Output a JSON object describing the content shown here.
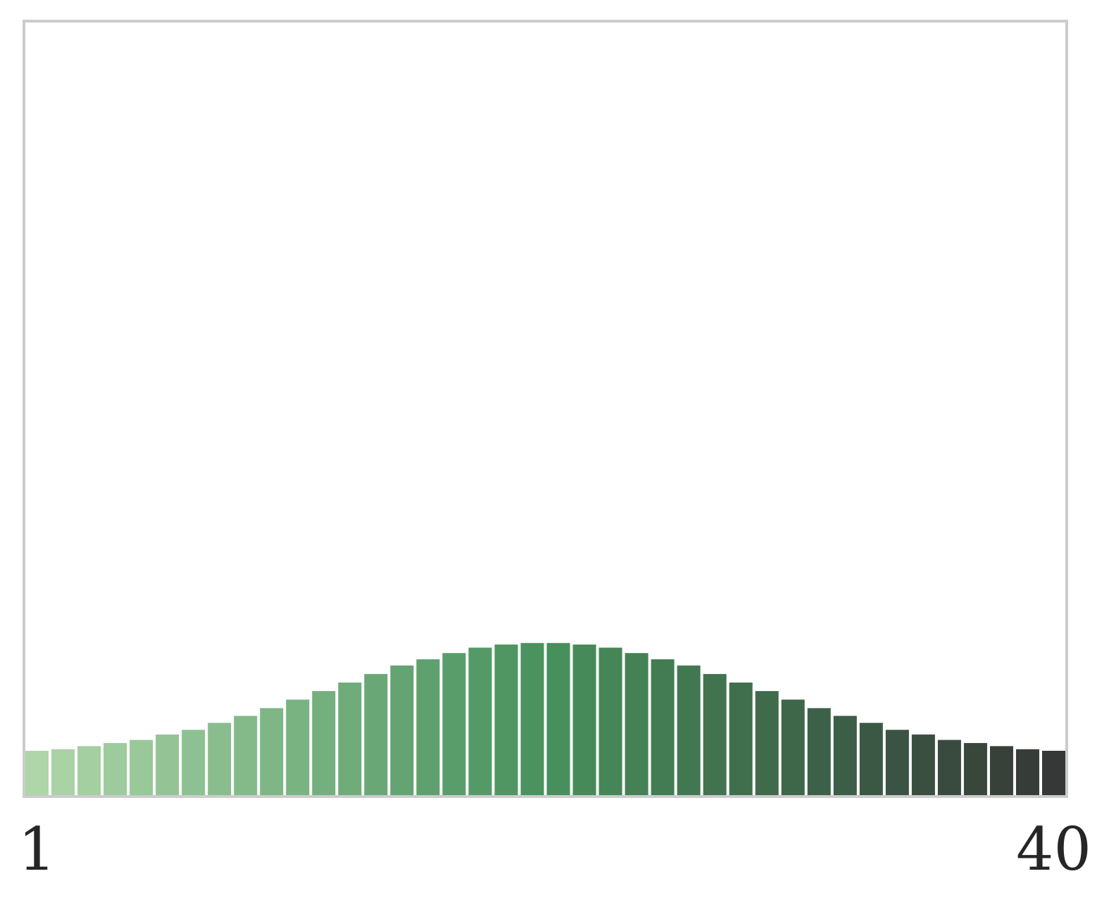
{
  "chart_data": {
    "type": "bar",
    "categories": [
      "1",
      "2",
      "3",
      "4",
      "5",
      "6",
      "7",
      "8",
      "9",
      "10",
      "11",
      "12",
      "13",
      "14",
      "15",
      "16",
      "17",
      "18",
      "19",
      "20",
      "21",
      "22",
      "23",
      "24",
      "25",
      "26",
      "27",
      "28",
      "29",
      "30",
      "31",
      "32",
      "33",
      "34",
      "35",
      "36",
      "37",
      "38",
      "39",
      "40"
    ],
    "values": [
      5.9,
      6.1,
      6.5,
      6.9,
      7.3,
      8.0,
      8.6,
      9.5,
      10.4,
      11.4,
      12.5,
      13.6,
      14.7,
      15.8,
      16.9,
      17.7,
      18.5,
      19.2,
      19.6,
      19.8,
      19.8,
      19.6,
      19.2,
      18.5,
      17.7,
      16.9,
      15.8,
      14.7,
      13.6,
      12.5,
      11.4,
      10.4,
      9.5,
      8.6,
      8.0,
      7.3,
      6.9,
      6.5,
      6.1,
      5.9
    ],
    "ylim": [
      0,
      100
    ],
    "x_tick_labels": [
      "1",
      "40"
    ],
    "title": "",
    "xlabel": "",
    "ylabel": "",
    "grid": false,
    "color_start": "#aed6a9",
    "color_mid": "#47915c",
    "color_end": "#353836",
    "frame_color": "#cccccc"
  }
}
